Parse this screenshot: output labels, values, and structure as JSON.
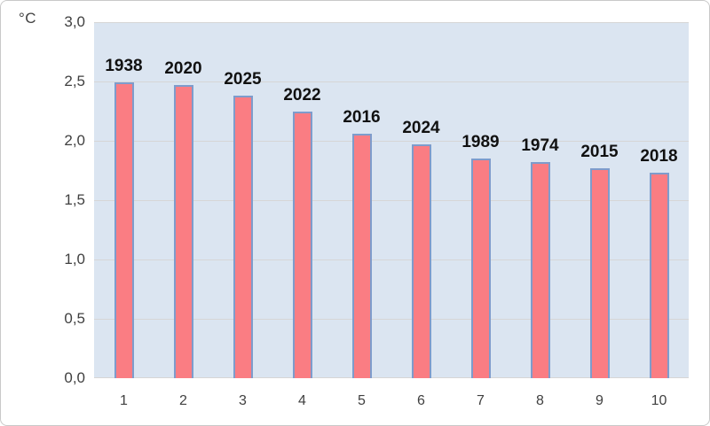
{
  "chart_data": {
    "type": "bar",
    "title": "",
    "categories": [
      "1",
      "2",
      "3",
      "4",
      "5",
      "6",
      "7",
      "8",
      "9",
      "10"
    ],
    "values": [
      2.49,
      2.47,
      2.38,
      2.25,
      2.06,
      1.97,
      1.85,
      1.82,
      1.77,
      1.73
    ],
    "bar_labels": [
      "1938",
      "2020",
      "2025",
      "2022",
      "2016",
      "2024",
      "1989",
      "1974",
      "2015",
      "2018"
    ],
    "ylabel": "°C",
    "xlabel": "",
    "ylim": [
      0,
      3
    ],
    "ytick_step": 0.5,
    "ytick_labels": [
      "0,0",
      "0,5",
      "1,0",
      "1,5",
      "2,0",
      "2,5",
      "3,0"
    ],
    "decimal_separator": ",",
    "grid": true,
    "legend": "none",
    "colors": {
      "bar_fill": "#fa7d83",
      "bar_border": "#7e9ccc",
      "plot_background": "#dbe5f1",
      "gridline": "#d6d6d6",
      "axis_text": "#404040",
      "bar_label_text": "#111111",
      "page_background": "#ffffff",
      "outer_border": "#c9c9c9"
    }
  }
}
